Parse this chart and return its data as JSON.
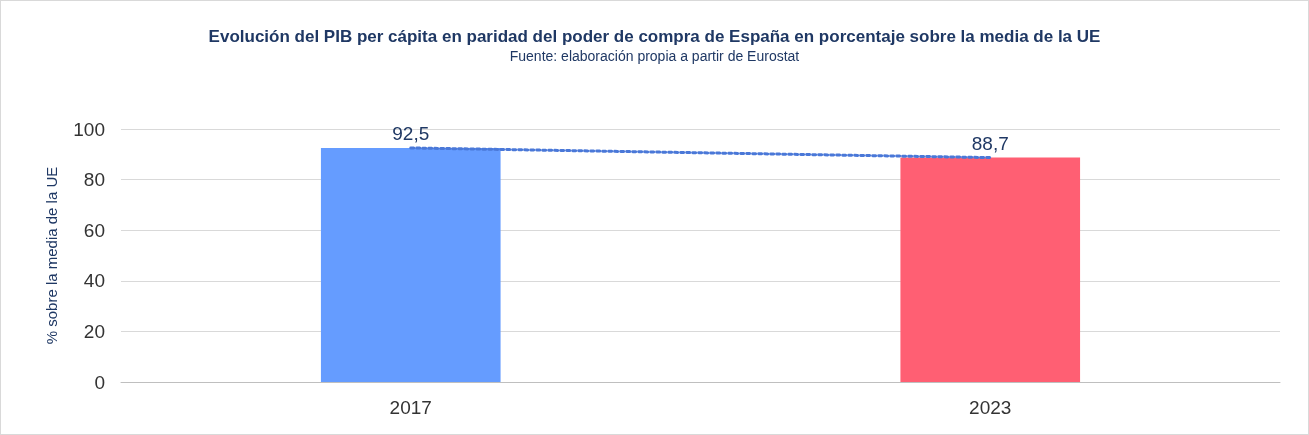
{
  "chart_data": {
    "type": "bar",
    "title": "Evolución del PIB per cápita en paridad del poder de compra de España en porcentaje sobre la media de la UE",
    "subtitle": "Fuente: elaboración propia a partir de Eurostat",
    "ylabel": "% sobre la media de la UE",
    "categories": [
      "2017",
      "2023"
    ],
    "series": [
      {
        "colors": [
          "#659cff",
          "#ff5f73"
        ],
        "values": [
          92.5,
          88.7
        ],
        "value_labels": [
          "92,5",
          "88,7"
        ]
      },
      {
        "type": "line",
        "values": [
          92.5,
          88.7
        ],
        "color": "#4a78d8",
        "line_style": "dotted",
        "marker": "none"
      }
    ],
    "ylim": [
      0,
      100
    ],
    "yticks": [
      0,
      20,
      40,
      60,
      80,
      100
    ],
    "grid": "y"
  }
}
